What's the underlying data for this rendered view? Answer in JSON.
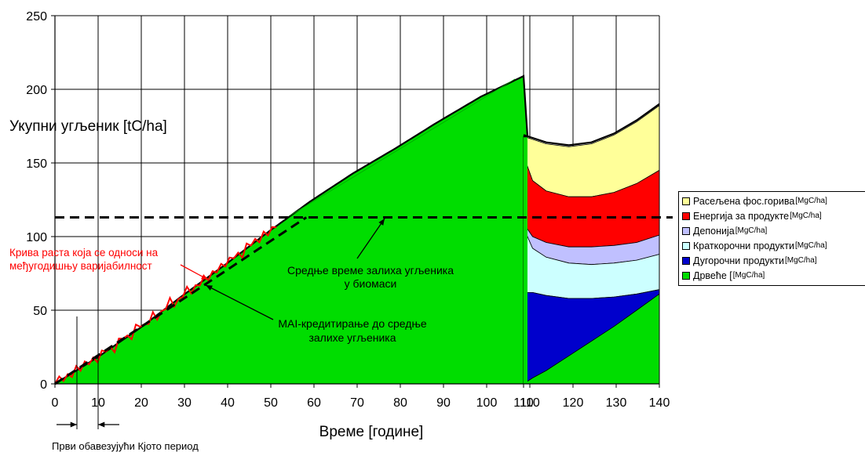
{
  "chart_data": {
    "type": "area",
    "ylabel": "Укупни угљеник [tC/ha]",
    "xlabel": "Време [године]",
    "xlim": [
      0,
      140
    ],
    "ylim": [
      0,
      250
    ],
    "x_ticks": [
      "0",
      "10",
      "20",
      "30",
      "40",
      "50",
      "60",
      "70",
      "80",
      "90",
      "100",
      "110",
      "110",
      "120",
      "130",
      "140"
    ],
    "y_ticks": [
      "0",
      "50",
      "100",
      "150",
      "200",
      "250"
    ],
    "grid": true,
    "legend_position": "right",
    "series": [
      {
        "name": "Расељена фос.горива",
        "unit": "[MgC/ha]",
        "color": "#FFFF99",
        "x": [
          0,
          120,
          130,
          140
        ],
        "values": [
          0,
          31,
          36,
          42
        ]
      },
      {
        "name": "Енергија за продукте",
        "unit": "[MgC/ha]",
        "color": "#FF0000",
        "x": [
          0,
          120,
          130,
          140
        ],
        "values": [
          0,
          38,
          39,
          42
        ]
      },
      {
        "name": "Депонија",
        "unit": " [MgC/ha]",
        "color": "#C0C0FF",
        "x": [
          0,
          120,
          130,
          140
        ],
        "values": [
          0,
          12,
          12,
          13
        ]
      },
      {
        "name": "Краткорочни продукти",
        "unit": "[MgC/ha]",
        "color": "#CCFFFF",
        "x": [
          0,
          120,
          130,
          140
        ],
        "values": [
          0,
          20,
          16,
          14
        ]
      },
      {
        "name": "Дугорочни продукти",
        "unit": "[MgC/ha]",
        "color": "#0000CC",
        "x": [
          0,
          120,
          130,
          140
        ],
        "values": [
          0,
          40,
          32,
          26
        ]
      },
      {
        "name": "Дрвеће [",
        "unit": " [MgC/ha]",
        "color": "#00DD00",
        "x": [
          0,
          20,
          40,
          60,
          80,
          100,
          110,
          120,
          130,
          140
        ],
        "values": [
          0,
          38,
          81,
          124,
          160,
          197,
          209,
          21,
          40,
          61
        ]
      }
    ],
    "reference_line": {
      "name": "Средње време залиха угљеника у биомаси",
      "y": 113,
      "style": "dashed"
    },
    "mai_line": {
      "x": [
        0,
        59
      ],
      "values": [
        0,
        113
      ]
    },
    "annotations": [
      "Крива раста која се односи на међугодишњу варијабилност",
      "Средње време залиха угљеника у биомаси",
      "MAI-кредитирање до средње залихе угљеника",
      "Први обавезујући Кјото период"
    ]
  },
  "annotations": {
    "growth_curve_1": "Крива раста која се односи на",
    "growth_curve_2": "међугодишњу варијабилност",
    "mean_stock_1": "Средње време залиха угљеника",
    "mean_stock_2": "у биомаси",
    "mai_1": "MAI-кредитирање до средње",
    "mai_2": "залихе угљеника",
    "kyoto": "Први обавезујући Кјото период"
  },
  "colors": {
    "red_annotation": "#FF0000",
    "black": "#000000"
  }
}
